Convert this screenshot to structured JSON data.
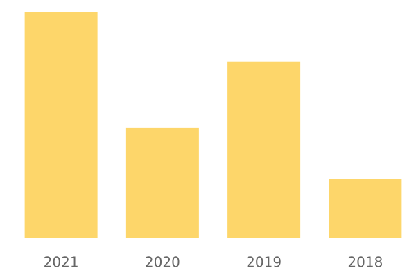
{
  "chart_data": {
    "type": "bar",
    "categories": [
      "2021",
      "2020",
      "2019",
      "2018"
    ],
    "values": [
      100,
      48.5,
      78,
      26
    ],
    "color": "#fdd66a",
    "ylim": [
      0,
      100
    ]
  }
}
